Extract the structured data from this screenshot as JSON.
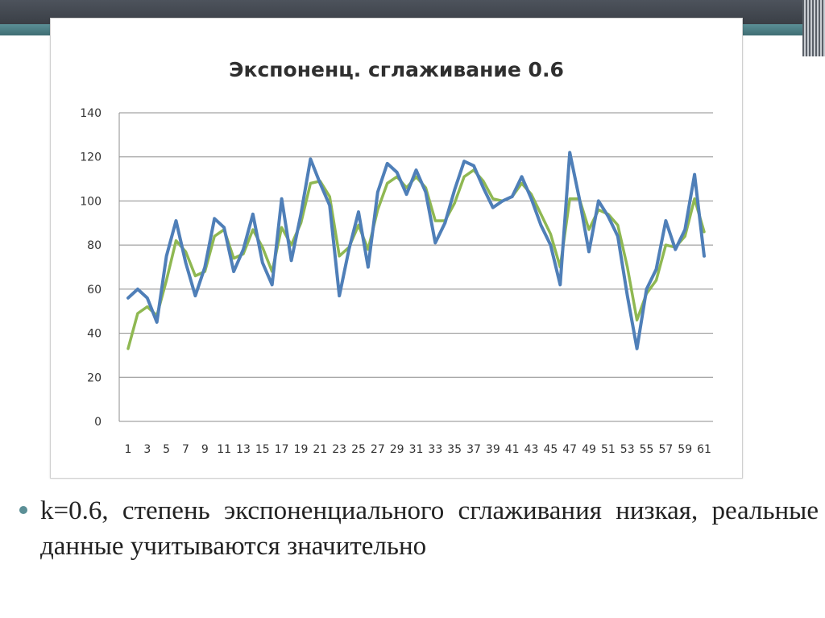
{
  "slide": {
    "bullet_text": "k=0.6, степень экспоненциального сглаживания низкая, реальные данные учитываются значительно"
  },
  "colors": {
    "actual_series": "#4f7fb8",
    "smoothed_series": "#8fb852",
    "gridline": "#8c8c8c",
    "accent": "#5b8f96"
  },
  "chart_data": {
    "type": "line",
    "title": "Экспоненц. сглаживание 0.6",
    "ylim": [
      0,
      140
    ],
    "y_ticks": [
      0,
      20,
      40,
      60,
      80,
      100,
      120,
      140
    ],
    "grid": true,
    "x_tick_labels": [
      "1",
      "3",
      "5",
      "7",
      "9",
      "11",
      "13",
      "15",
      "17",
      "19",
      "21",
      "23",
      "25",
      "27",
      "29",
      "31",
      "33",
      "35",
      "37",
      "39",
      "41",
      "43",
      "45",
      "47",
      "49",
      "51",
      "53",
      "55",
      "57",
      "59",
      "61"
    ],
    "x": [
      1,
      2,
      3,
      4,
      5,
      6,
      7,
      8,
      9,
      10,
      11,
      12,
      13,
      14,
      15,
      16,
      17,
      18,
      19,
      20,
      21,
      22,
      23,
      24,
      25,
      26,
      27,
      28,
      29,
      30,
      31,
      32,
      33,
      34,
      35,
      36,
      37,
      38,
      39,
      40,
      41,
      42,
      43,
      44,
      45,
      46,
      47,
      48,
      49,
      50,
      51,
      52,
      53,
      54,
      55,
      56,
      57,
      58,
      59,
      60,
      61
    ],
    "series": [
      {
        "values": [
          56,
          60,
          56,
          45,
          75,
          91,
          72,
          57,
          70,
          92,
          88,
          68,
          78,
          94,
          72,
          62,
          101,
          73,
          94,
          119,
          108,
          98,
          57,
          78,
          95,
          70,
          104,
          117,
          113,
          103,
          114,
          104,
          81,
          90,
          105,
          118,
          116,
          106,
          97,
          100,
          102,
          111,
          101,
          89,
          80,
          62,
          122,
          101,
          77,
          100,
          93,
          84,
          57,
          33,
          60,
          69,
          91,
          78,
          87,
          112,
          75
        ]
      },
      {
        "values": [
          33,
          49,
          52,
          48,
          64,
          82,
          77,
          66,
          68,
          84,
          87,
          74,
          76,
          87,
          79,
          68,
          88,
          80,
          90,
          108,
          109,
          102,
          75,
          79,
          89,
          78,
          96,
          108,
          111,
          106,
          111,
          106,
          91,
          91,
          99,
          111,
          114,
          109,
          101,
          100,
          102,
          108,
          103,
          94,
          85,
          70,
          101,
          101,
          87,
          96,
          94,
          89,
          70,
          46,
          58,
          64,
          80,
          79,
          84,
          101,
          86
        ]
      }
    ]
  }
}
